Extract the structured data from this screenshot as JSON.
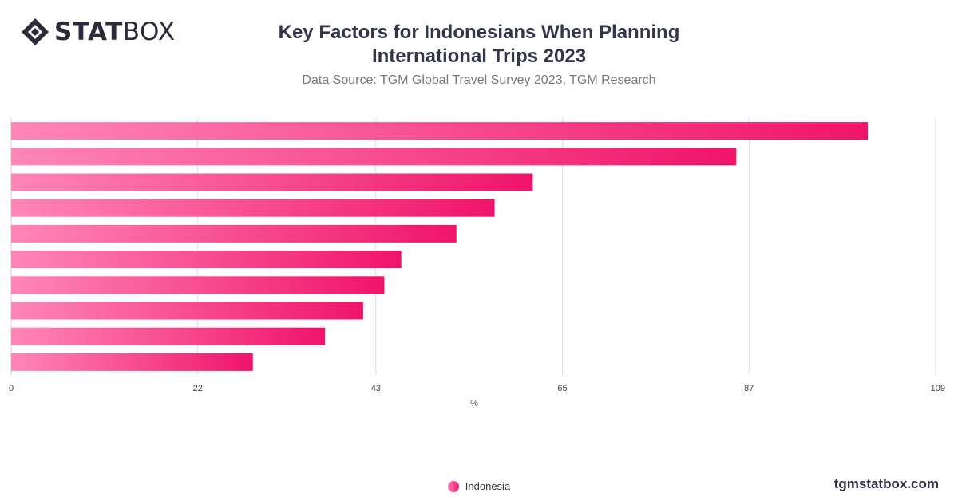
{
  "brand": {
    "logo_bold": "STAT",
    "logo_thin": "BOX",
    "footer": "tgmstatbox.com"
  },
  "colors": {
    "bar_start": "#ff86b8",
    "bar_end": "#f0146a",
    "grid": "#dddddd",
    "text": "#34344a"
  },
  "chart_data": {
    "type": "bar",
    "orientation": "horizontal",
    "title": "Key Factors for Indonesians When Planning International Trips 2023",
    "subtitle": "Data Source: TGM Global Travel Survey 2023, TGM Research",
    "xlabel": "%",
    "ylabel": "",
    "categories": [
      "",
      "",
      "",
      "",
      "",
      "",
      "",
      "",
      "",
      ""
    ],
    "series": [
      {
        "name": "Indonesia",
        "values": [
          101,
          85.5,
          61.5,
          57,
          52.5,
          46,
          44,
          41.5,
          37,
          28.5
        ]
      }
    ],
    "xlim": [
      0,
      109
    ],
    "xticks": [
      0,
      22,
      43,
      65,
      87,
      109
    ],
    "grid": true,
    "legend": "bottom-center"
  }
}
